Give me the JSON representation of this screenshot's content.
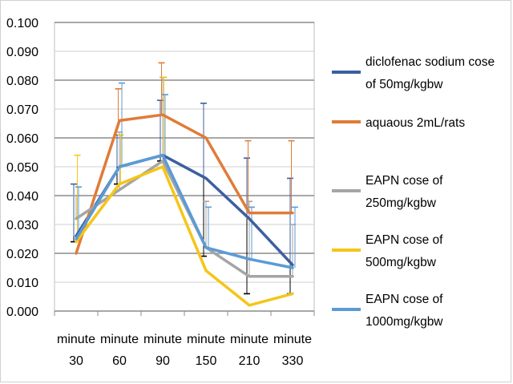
{
  "chart_data": {
    "type": "line",
    "categories": [
      [
        "minute",
        "30"
      ],
      [
        "minute",
        "60"
      ],
      [
        "minute",
        "90"
      ],
      [
        "minute",
        "150"
      ],
      [
        "minute",
        "210"
      ],
      [
        "minute",
        "330"
      ]
    ],
    "ylim": [
      0,
      0.1
    ],
    "y_ticks": [
      "0.000",
      "0.010",
      "0.020",
      "0.030",
      "0.040",
      "0.050",
      "0.060",
      "0.070",
      "0.080",
      "0.090",
      "0.100"
    ],
    "grid": true,
    "legend_position": "right",
    "series": [
      {
        "name_lines": [
          "diclofenac sodium cose",
          "of 50mg/kgbw"
        ],
        "color": "#3c5fa0",
        "values": [
          0.026,
          0.05,
          0.054,
          0.046,
          0.032,
          0.016
        ],
        "err_upper": [
          0.044,
          0.061,
          0.073,
          0.072,
          0.053,
          0.046
        ],
        "err_lower": [
          0.024,
          0.044,
          0.052,
          0.019,
          0.006,
          0.006
        ]
      },
      {
        "name_lines": [
          "aquaous 2mL/rats"
        ],
        "color": "#e07b39",
        "values": [
          0.02,
          0.066,
          0.068,
          0.06,
          0.034,
          0.034
        ],
        "err_upper": [
          0.02,
          0.077,
          0.086,
          0.06,
          0.059,
          0.059
        ],
        "err_lower": [
          0.02,
          0.066,
          0.068,
          0.06,
          0.034,
          0.034
        ]
      },
      {
        "name_lines": [
          "EAPN cose of",
          "250mg/kgbw"
        ],
        "color": "#a5a5a5",
        "values": [
          0.032,
          0.042,
          0.052,
          0.022,
          0.012,
          0.012
        ],
        "err_upper": [
          0.04,
          0.062,
          0.081,
          0.038,
          0.038,
          0.03
        ],
        "err_lower": [
          0.032,
          0.042,
          0.052,
          0.022,
          0.012,
          0.012
        ]
      },
      {
        "name_lines": [
          "EAPN cose of",
          "500mg/kgbw"
        ],
        "color": "#f5c518",
        "values": [
          0.024,
          0.044,
          0.05,
          0.014,
          0.002,
          0.006
        ],
        "err_upper": [
          0.054,
          0.061,
          0.081,
          0.014,
          0.002,
          0.006
        ],
        "err_lower": [
          0.024,
          0.044,
          0.05,
          0.014,
          0.002,
          0.006
        ]
      },
      {
        "name_lines": [
          "EAPN cose of",
          "1000mg/kgbw"
        ],
        "color": "#5b9bd5",
        "values": [
          0.025,
          0.05,
          0.054,
          0.022,
          0.018,
          0.015
        ],
        "err_upper": [
          0.043,
          0.079,
          0.075,
          0.036,
          0.036,
          0.036
        ],
        "err_lower": [
          0.025,
          0.05,
          0.054,
          0.022,
          0.018,
          0.015
        ]
      }
    ]
  }
}
